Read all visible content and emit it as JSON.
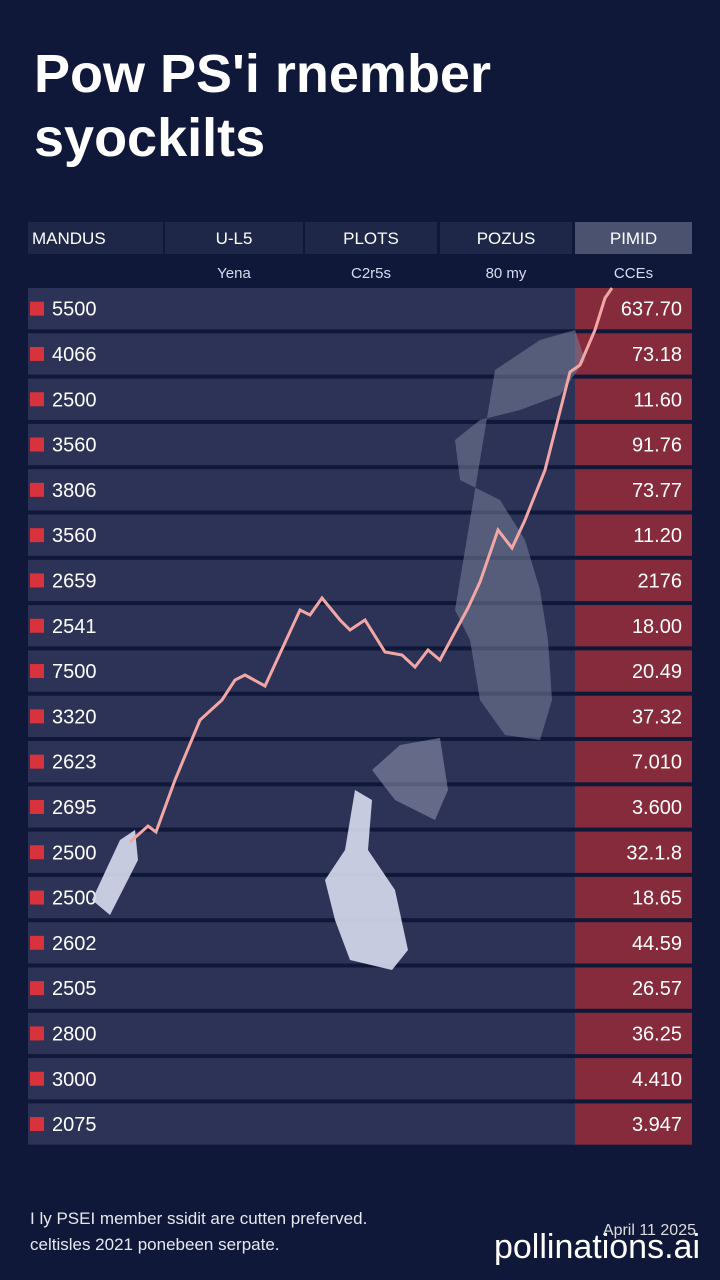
{
  "header": {
    "title": [
      "Pow PS'i rnember",
      "syockilts"
    ]
  },
  "table": {
    "columns": [
      "MANDUS",
      "U-L5",
      "PLOTS",
      "POZUS",
      "PIMID"
    ],
    "subheaders": [
      "Yena",
      "C2r5s",
      "80 my",
      "CCEs"
    ],
    "rows": [
      [
        "5500",
        "637.70"
      ],
      [
        "4066",
        "73.18"
      ],
      [
        "2500",
        "11.60"
      ],
      [
        "3560",
        "91.76"
      ],
      [
        "3806",
        "73.77"
      ],
      [
        "3560",
        "11.20"
      ],
      [
        "2659",
        "2176"
      ],
      [
        "2541",
        "18.00"
      ],
      [
        "7500",
        "20.49"
      ],
      [
        "3320",
        "37.32"
      ],
      [
        "2623",
        "7.010"
      ],
      [
        "2695",
        "3.600"
      ],
      [
        "2500",
        "32.1.8"
      ],
      [
        "2500",
        "18.65"
      ],
      [
        "2602",
        "44.59"
      ],
      [
        "2505",
        "26.57"
      ],
      [
        "2800",
        "36.25"
      ],
      [
        "3000",
        "4.410"
      ],
      [
        "2075",
        "3.947"
      ]
    ]
  },
  "footer": {
    "lines": [
      "I ly PSEI member ssidit are cutten preferved.",
      "celtisles 2021 ponebeen serpate."
    ]
  },
  "date": "April 11 2025",
  "watermark": "pollinations.ai"
}
